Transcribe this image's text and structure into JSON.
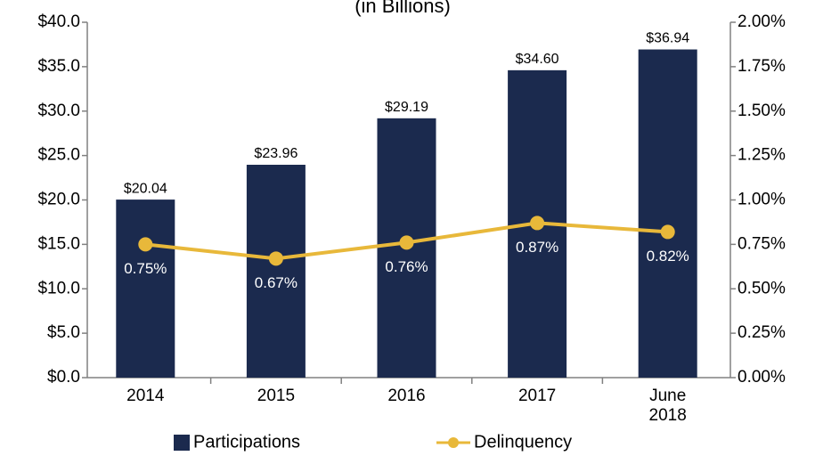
{
  "chart_data": {
    "type": "bar",
    "title": "(in Billions)",
    "categories": [
      "2014",
      "2015",
      "2016",
      "2017",
      "June 2018"
    ],
    "series": [
      {
        "name": "Participations",
        "type": "bar",
        "color": "#1b2a4e",
        "values": [
          20.04,
          23.96,
          29.19,
          34.6,
          36.94
        ],
        "value_labels": [
          "$20.04",
          "$23.96",
          "$29.19",
          "$34.60",
          "$36.94"
        ]
      },
      {
        "name": "Delinquency",
        "type": "line",
        "axis": "y2",
        "color": "#e8b83a",
        "values": [
          0.75,
          0.67,
          0.76,
          0.87,
          0.82
        ],
        "value_labels": [
          "0.75%",
          "0.67%",
          "0.76%",
          "0.87%",
          "0.82%"
        ]
      }
    ],
    "ylim": [
      0,
      40
    ],
    "yticks": [
      {
        "value": 0,
        "label": "$0.0"
      },
      {
        "value": 5,
        "label": "$5.0"
      },
      {
        "value": 10,
        "label": "$10.0"
      },
      {
        "value": 15,
        "label": "$15.0"
      },
      {
        "value": 20,
        "label": "$20.0"
      },
      {
        "value": 25,
        "label": "$25.0"
      },
      {
        "value": 30,
        "label": "$30.0"
      },
      {
        "value": 35,
        "label": "$35.0"
      },
      {
        "value": 40,
        "label": "$40.0"
      }
    ],
    "y2lim": [
      0,
      2
    ],
    "y2ticks": [
      {
        "value": 0,
        "label": "0.00%"
      },
      {
        "value": 0.25,
        "label": "0.25%"
      },
      {
        "value": 0.5,
        "label": "0.50%"
      },
      {
        "value": 0.75,
        "label": "0.75%"
      },
      {
        "value": 1,
        "label": "1.00%"
      },
      {
        "value": 1.25,
        "label": "1.25%"
      },
      {
        "value": 1.5,
        "label": "1.50%"
      },
      {
        "value": 1.75,
        "label": "1.75%"
      },
      {
        "value": 2,
        "label": "2.00%"
      }
    ],
    "legend": "bottom"
  }
}
